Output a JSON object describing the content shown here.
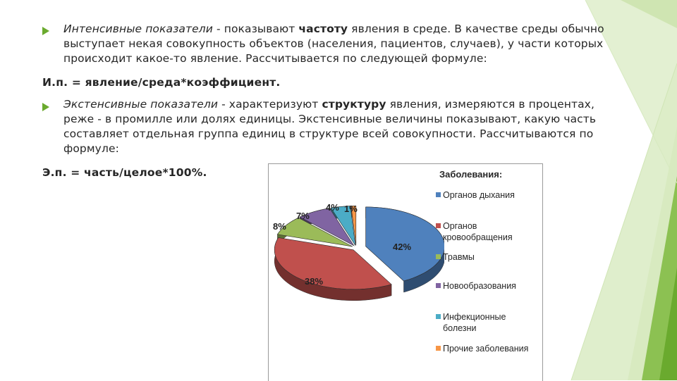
{
  "paragraph1": {
    "term": "Интенсивные показатели",
    "pre_bold": " - показывают ",
    "bold": "частоту",
    "post_bold": " явления в среде. В качестве среды обычно выступает некая совокупность объектов (населения, пациентов, случаев), у части которых происходит какое-то явление. Рассчитывается по следующей формуле:"
  },
  "formula1": "И.п. = явление/среда*коэффициент.",
  "paragraph2": {
    "term": "Экстенсивные показатели",
    "pre_bold": " - характеризуют ",
    "bold": "структуру",
    "post_bold": " явления, измеряются в процентах, реже - в промилле или долях единицы. Экстенсивные величины показывают, какую часть составляет отдельная группа единиц в структуре всей совокупности. Рассчитываются по формуле:"
  },
  "formula2": "Э.п. = часть/целое*100%.",
  "chart_data": {
    "type": "pie",
    "title": "Заболевания:",
    "slices": [
      {
        "label": "Органов дыхания",
        "value": 42,
        "label_text": "42%",
        "color": "#4f81bd"
      },
      {
        "label": "Органов кровообращения",
        "value": 38,
        "label_text": "38%",
        "color": "#c0504d"
      },
      {
        "label": "Травмы",
        "value": 8,
        "label_text": "8%",
        "color": "#9bbb59"
      },
      {
        "label": "Новообразования",
        "value": 7,
        "label_text": "7%",
        "color": "#8064a2"
      },
      {
        "label": "Инфекционные болезни",
        "value": 4,
        "label_text": "4%",
        "color": "#4bacc6"
      },
      {
        "label": "Прочие заболевания",
        "value": 1,
        "label_text": "1%",
        "color": "#f79646"
      }
    ],
    "legend_position": "right",
    "style": "3d-exploded"
  },
  "colors": {
    "accent_green": "#6aaa2e",
    "deco_green_light": "#b5d884",
    "deco_green_dark": "#8cc152"
  }
}
